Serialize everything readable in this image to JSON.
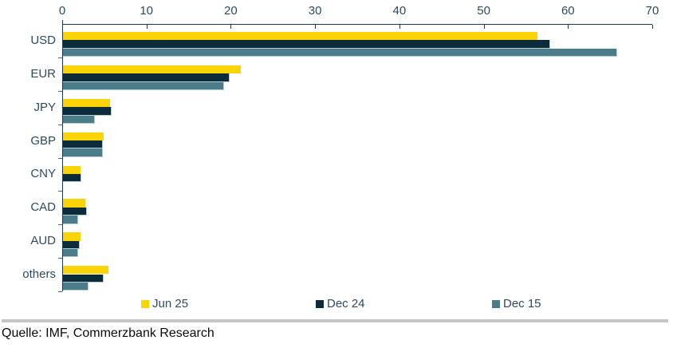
{
  "colors": {
    "axis_line": "#1e3a4c",
    "tick_text": "#2e4a5e",
    "divider": "#c6c6c6",
    "source_text": "#0b0b0b",
    "background": "#ffffff"
  },
  "chart_data": {
    "type": "bar",
    "orientation": "horizontal",
    "title": "",
    "xlabel": "",
    "ylabel": "",
    "xlim": [
      0,
      70
    ],
    "x_ticks": [
      0,
      10,
      20,
      30,
      40,
      50,
      60,
      70
    ],
    "grid": false,
    "legend_position": "bottom",
    "categories": [
      "USD",
      "EUR",
      "JPY",
      "GBP",
      "CNY",
      "CAD",
      "AUD",
      "others"
    ],
    "series": [
      {
        "name": "Jun 25",
        "color": "#fad406",
        "values": [
          56.3,
          21.1,
          5.6,
          4.8,
          2.1,
          2.6,
          2.1,
          5.4
        ]
      },
      {
        "name": "Dec 24",
        "color": "#0d2c3b",
        "values": [
          57.8,
          19.8,
          5.8,
          4.7,
          2.2,
          2.8,
          2.0,
          4.8
        ]
      },
      {
        "name": "Dec 15",
        "color": "#4a7d89",
        "values": [
          65.7,
          19.1,
          3.8,
          4.7,
          null,
          1.8,
          1.8,
          3.0
        ]
      }
    ]
  },
  "source": {
    "label": "Quelle: IMF, Commerzbank Research"
  }
}
